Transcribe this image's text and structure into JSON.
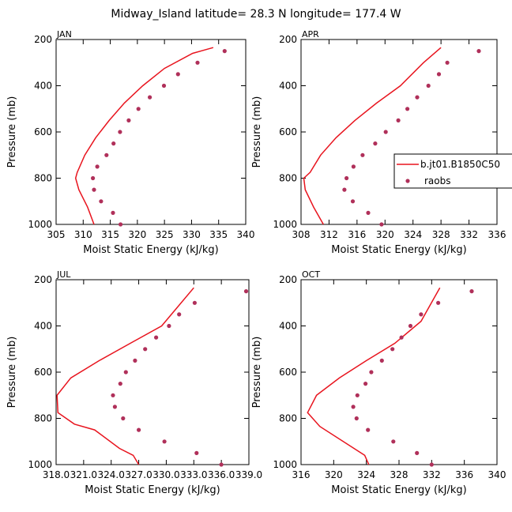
{
  "chart_data": {
    "type": "line",
    "title": "Midway_Island  latitude= 28.3 N longitude= 177.4 W",
    "xlabel": "Moist Static Energy (kJ/kg)",
    "ylabel": "Pressure (mb)",
    "legend": {
      "entries": [
        "b.jt01.B1850C50",
        "raobs"
      ],
      "placement": "right of APR panel"
    },
    "colors": {
      "model": "#e8141e",
      "raobs": "#b0305a"
    },
    "panels": [
      {
        "name": "JAN",
        "xlim": [
          305,
          340
        ],
        "ylim": [
          1000,
          200
        ],
        "xticks": [
          305,
          310,
          315,
          320,
          325,
          330,
          335,
          340
        ],
        "xtick_labels": [
          "305",
          "310",
          "315",
          "320",
          "325",
          "330",
          "335",
          "340"
        ],
        "yticks": [
          200,
          400,
          600,
          800,
          1000
        ],
        "ytick_labels": [
          "200",
          "400",
          "600",
          "800",
          "1000"
        ],
        "model": {
          "x": [
            312.0,
            310.8,
            309.2,
            308.6,
            308.9,
            310.3,
            312.3,
            314.8,
            317.6,
            321.0,
            325.0,
            330.2,
            334.0
          ],
          "y": [
            1000,
            925,
            850,
            800,
            775,
            700,
            625,
            550,
            475,
            400,
            325,
            260,
            235
          ]
        },
        "raobs": {
          "x": [
            316.9,
            315.5,
            313.3,
            312.0,
            311.8,
            312.6,
            314.3,
            315.6,
            316.8,
            318.4,
            320.2,
            322.3,
            324.9,
            327.5,
            331.1,
            336.1
          ],
          "y": [
            1000,
            950,
            900,
            850,
            800,
            750,
            700,
            650,
            600,
            550,
            500,
            450,
            400,
            350,
            300,
            250
          ]
        }
      },
      {
        "name": "APR",
        "xlim": [
          308,
          336
        ],
        "ylim": [
          1000,
          200
        ],
        "xticks": [
          308,
          312,
          316,
          320,
          324,
          328,
          332,
          336
        ],
        "xtick_labels": [
          "308",
          "312",
          "316",
          "320",
          "324",
          "328",
          "332",
          "336"
        ],
        "yticks": [
          200,
          400,
          600,
          800,
          1000
        ],
        "ytick_labels": [
          "200",
          "400",
          "600",
          "800",
          "1000"
        ],
        "model": {
          "x": [
            311.2,
            309.8,
            308.6,
            308.4,
            309.3,
            310.8,
            313.0,
            315.7,
            318.8,
            322.2,
            325.5,
            328.0
          ],
          "y": [
            1000,
            925,
            850,
            800,
            775,
            700,
            625,
            550,
            475,
            400,
            300,
            235
          ]
        },
        "raobs": {
          "x": [
            319.5,
            317.6,
            315.4,
            314.2,
            314.5,
            315.5,
            316.8,
            318.6,
            320.1,
            321.9,
            323.2,
            324.6,
            326.2,
            327.7,
            328.9,
            333.4
          ],
          "y": [
            1000,
            950,
            900,
            850,
            800,
            750,
            700,
            650,
            600,
            550,
            500,
            450,
            400,
            350,
            300,
            250
          ]
        }
      },
      {
        "name": "JUL",
        "xlim": [
          318.0,
          339.0
        ],
        "ylim": [
          1000,
          200
        ],
        "xticks": [
          318.0,
          321.0,
          324.0,
          327.0,
          330.0,
          333.0,
          336.0,
          339.0
        ],
        "xtick_labels": [
          "318.0",
          "321.0",
          "324.0",
          "327.0",
          "330.0",
          "333.0",
          "336.0",
          "339.0"
        ],
        "yticks": [
          200,
          400,
          600,
          800,
          1000
        ],
        "ytick_labels": [
          "200",
          "400",
          "600",
          "800",
          "1000"
        ],
        "model": {
          "x": [
            327.0,
            326.4,
            324.9,
            322.2,
            320.0,
            318.2,
            318.1,
            319.6,
            322.7,
            326.1,
            329.5,
            333.0
          ],
          "y": [
            1000,
            960,
            930,
            850,
            825,
            775,
            700,
            625,
            550,
            475,
            400,
            235
          ]
        },
        "raobs": {
          "x": [
            336.0,
            333.3,
            329.8,
            327.0,
            325.3,
            324.4,
            324.2,
            325.0,
            325.6,
            326.6,
            327.7,
            328.9,
            330.3,
            331.4,
            333.1,
            338.7
          ],
          "y": [
            1000,
            950,
            900,
            850,
            800,
            750,
            700,
            650,
            600,
            550,
            500,
            450,
            400,
            350,
            300,
            250
          ]
        }
      },
      {
        "name": "OCT",
        "xlim": [
          316,
          340
        ],
        "ylim": [
          1000,
          200
        ],
        "xticks": [
          316,
          320,
          324,
          328,
          332,
          336,
          340
        ],
        "xtick_labels": [
          "316",
          "320",
          "324",
          "328",
          "332",
          "336",
          "340"
        ],
        "yticks": [
          200,
          400,
          600,
          800,
          1000
        ],
        "ytick_labels": [
          "200",
          "400",
          "600",
          "800",
          "1000"
        ],
        "model": {
          "x": [
            324.3,
            323.8,
            318.3,
            316.8,
            317.9,
            320.7,
            324.0,
            327.5,
            330.7,
            333.0
          ],
          "y": [
            1000,
            960,
            835,
            775,
            700,
            625,
            550,
            475,
            380,
            235
          ]
        },
        "raobs": {
          "x": [
            332.0,
            330.2,
            327.3,
            324.2,
            322.8,
            322.4,
            322.9,
            323.9,
            324.6,
            325.9,
            327.2,
            328.3,
            329.4,
            330.7,
            332.8,
            336.9
          ],
          "y": [
            1000,
            950,
            900,
            850,
            800,
            750,
            700,
            650,
            600,
            550,
            500,
            450,
            400,
            350,
            300,
            250
          ]
        }
      }
    ]
  }
}
